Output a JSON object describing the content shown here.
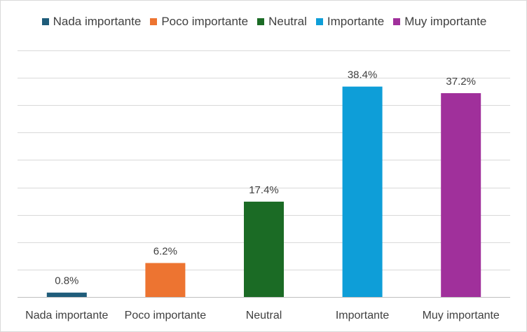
{
  "chart_data": {
    "type": "bar",
    "categories": [
      "Nada importante",
      "Poco importante",
      "Neutral",
      "Importante",
      "Muy importante"
    ],
    "values": [
      0.8,
      6.2,
      17.4,
      38.4,
      37.2
    ],
    "data_labels": [
      "0.8%",
      "6.2%",
      "17.4%",
      "38.4%",
      "37.2%"
    ],
    "colors": [
      "#1F5C7A",
      "#ED7431",
      "#1B6B25",
      "#0E9ED8",
      "#A0309B"
    ],
    "ylim": [
      0,
      45
    ],
    "grid": true,
    "legend_position": "top"
  }
}
